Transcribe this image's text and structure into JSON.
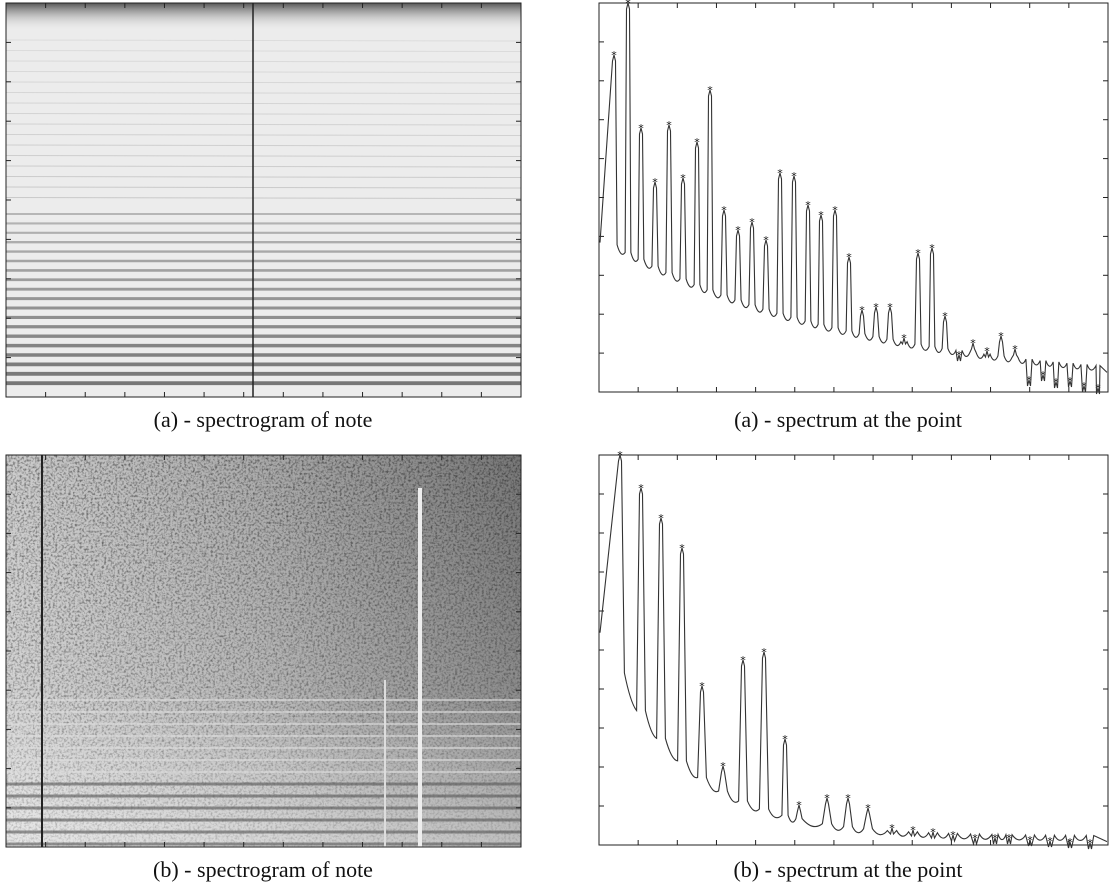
{
  "panels": [
    {
      "caption": "(a) - spectrogram of note"
    },
    {
      "caption": "(a) - spectrum at the point"
    },
    {
      "caption": "(b) - spectrogram of note"
    },
    {
      "caption": "(b) - spectrum at the point"
    }
  ]
}
